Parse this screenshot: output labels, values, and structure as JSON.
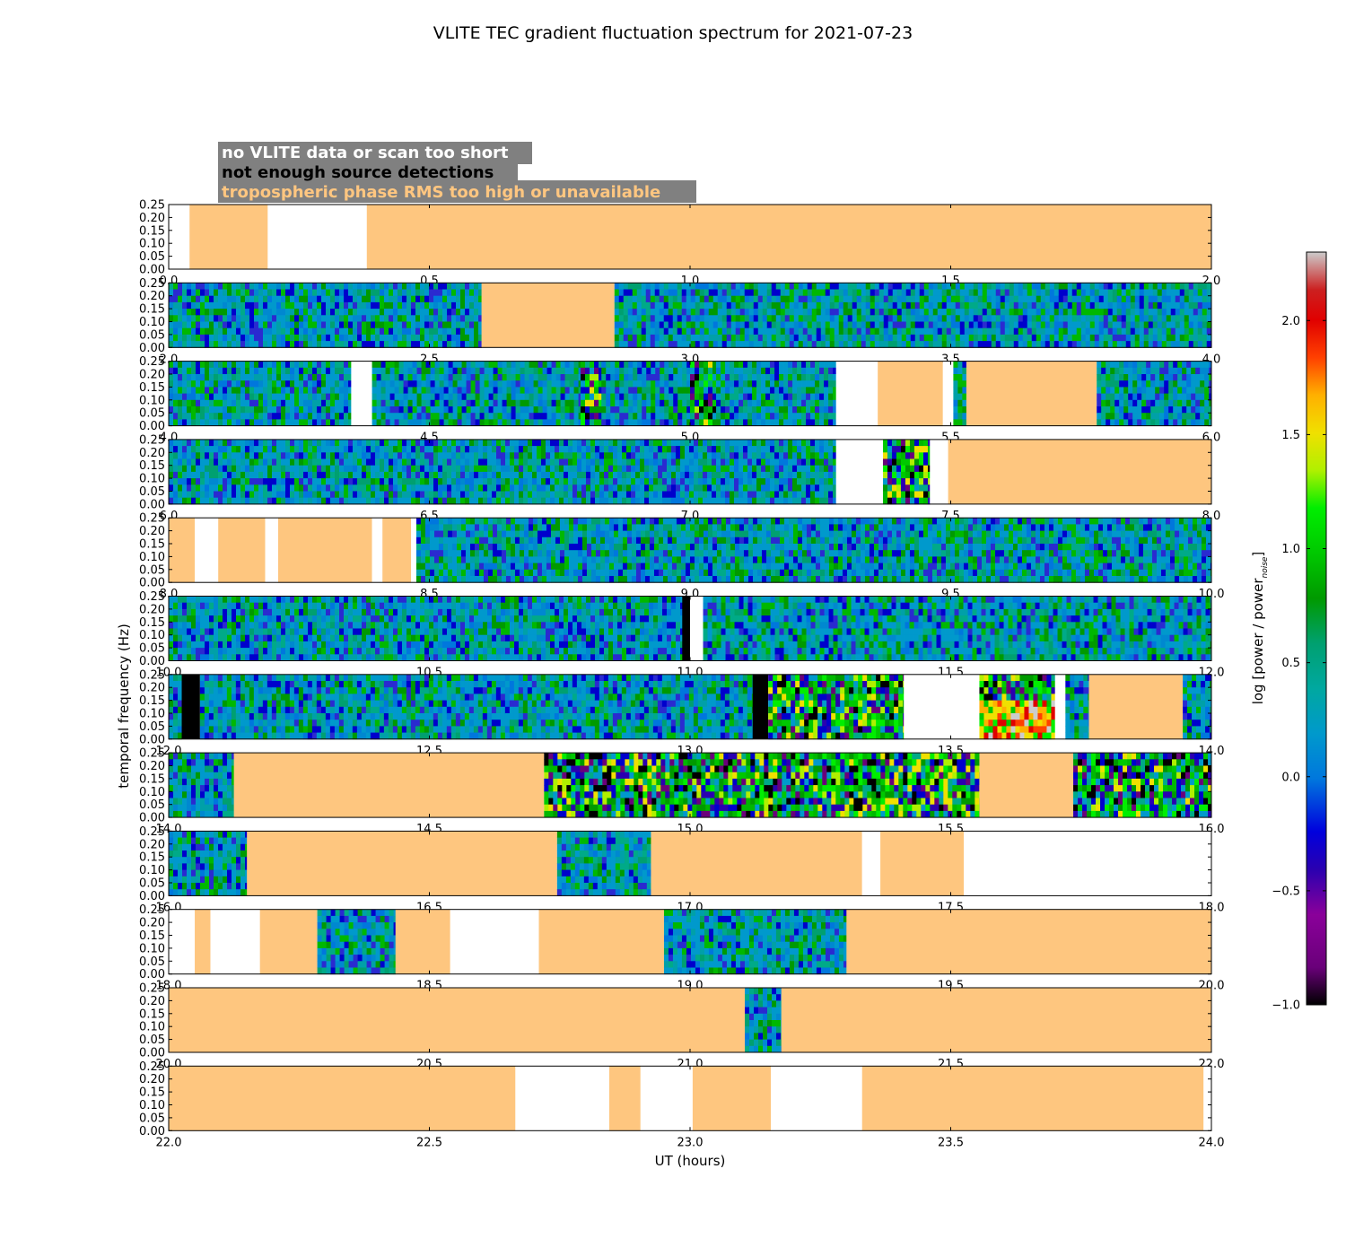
{
  "chart_data": {
    "type": "heatmap",
    "title": "VLITE TEC gradient fluctuation spectrum for 2021-07-23",
    "xlabel": "UT (hours)",
    "ylabel": "temporal frequency (Hz)",
    "y_ticks": [
      "0.00",
      "0.05",
      "0.10",
      "0.15",
      "0.20",
      "0.25"
    ],
    "ylim": [
      0,
      0.25
    ],
    "legend": [
      {
        "label": "no VLITE data or scan too short",
        "text_color": "#ffffff",
        "fill": "white"
      },
      {
        "label": "not enough source detections",
        "text_color": "#000000",
        "fill": "black"
      },
      {
        "label": "tropospheric phase RMS too high or unavailable",
        "text_color": "#ffc680",
        "fill": "orange"
      }
    ],
    "colors": {
      "orange": "#fec67f",
      "white": "#ffffff",
      "black": "#000000",
      "legend_box": "#808080"
    },
    "colorbar": {
      "label": "log [power / power",
      "label_sub": "noise",
      "label_end": "]",
      "range": [
        -1.0,
        2.3
      ],
      "ticks": [
        "−1.0",
        "−0.5",
        "0.0",
        "0.5",
        "1.0",
        "1.5",
        "2.0"
      ],
      "tick_values": [
        -1.0,
        -0.5,
        0.0,
        0.5,
        1.0,
        1.5,
        2.0
      ],
      "colormap": "nipy_spectral"
    },
    "panels": [
      {
        "xlim": [
          0,
          2
        ],
        "xticks": [
          "0.0",
          "0.5",
          "1.0",
          "1.5",
          "2.0"
        ],
        "segments": [
          {
            "s": 0.0,
            "e": 0.04,
            "k": "white"
          },
          {
            "s": 0.04,
            "e": 0.19,
            "k": "orange"
          },
          {
            "s": 0.19,
            "e": 0.38,
            "k": "white"
          },
          {
            "s": 0.38,
            "e": 2.0,
            "k": "orange"
          }
        ]
      },
      {
        "xlim": [
          2,
          4
        ],
        "xticks": [
          "2.0",
          "2.5",
          "3.0",
          "3.5",
          "4.0"
        ],
        "segments": [
          {
            "s": 2.0,
            "e": 2.6,
            "k": "data"
          },
          {
            "s": 2.6,
            "e": 2.855,
            "k": "orange"
          },
          {
            "s": 2.855,
            "e": 4.0,
            "k": "data"
          }
        ]
      },
      {
        "xlim": [
          4,
          6
        ],
        "xticks": [
          "4.0",
          "4.5",
          "5.0",
          "5.5",
          "6.0"
        ],
        "segments": [
          {
            "s": 4.0,
            "e": 4.35,
            "k": "data"
          },
          {
            "s": 4.35,
            "e": 4.39,
            "k": "white"
          },
          {
            "s": 4.39,
            "e": 4.79,
            "k": "data"
          },
          {
            "s": 4.79,
            "e": 4.83,
            "k": "active"
          },
          {
            "s": 4.83,
            "e": 5.0,
            "k": "data"
          },
          {
            "s": 5.0,
            "e": 5.05,
            "k": "active"
          },
          {
            "s": 5.05,
            "e": 5.28,
            "k": "data"
          },
          {
            "s": 5.28,
            "e": 5.36,
            "k": "white"
          },
          {
            "s": 5.36,
            "e": 5.485,
            "k": "orange"
          },
          {
            "s": 5.485,
            "e": 5.505,
            "k": "white"
          },
          {
            "s": 5.505,
            "e": 5.53,
            "k": "data"
          },
          {
            "s": 5.53,
            "e": 5.78,
            "k": "orange"
          },
          {
            "s": 5.78,
            "e": 6.0,
            "k": "data"
          }
        ]
      },
      {
        "xlim": [
          6,
          8
        ],
        "xticks": [
          "6.0",
          "6.5",
          "7.0",
          "7.5",
          "8.0"
        ],
        "segments": [
          {
            "s": 6.0,
            "e": 7.28,
            "k": "data"
          },
          {
            "s": 7.28,
            "e": 7.37,
            "k": "white"
          },
          {
            "s": 7.37,
            "e": 7.46,
            "k": "active"
          },
          {
            "s": 7.46,
            "e": 7.495,
            "k": "white"
          },
          {
            "s": 7.495,
            "e": 8.0,
            "k": "orange"
          }
        ]
      },
      {
        "xlim": [
          8,
          10
        ],
        "xticks": [
          "8.0",
          "8.5",
          "9.0",
          "9.5",
          "10.0"
        ],
        "segments": [
          {
            "s": 8.0,
            "e": 8.05,
            "k": "orange"
          },
          {
            "s": 8.05,
            "e": 8.095,
            "k": "white"
          },
          {
            "s": 8.095,
            "e": 8.185,
            "k": "orange"
          },
          {
            "s": 8.185,
            "e": 8.21,
            "k": "white"
          },
          {
            "s": 8.21,
            "e": 8.39,
            "k": "orange"
          },
          {
            "s": 8.39,
            "e": 8.41,
            "k": "white"
          },
          {
            "s": 8.41,
            "e": 8.465,
            "k": "orange"
          },
          {
            "s": 8.465,
            "e": 8.475,
            "k": "white"
          },
          {
            "s": 8.475,
            "e": 10.0,
            "k": "data"
          }
        ]
      },
      {
        "xlim": [
          10,
          12
        ],
        "xticks": [
          "10.0",
          "10.5",
          "11.0",
          "11.5",
          "12.0"
        ],
        "segments": [
          {
            "s": 10.0,
            "e": 10.985,
            "k": "data"
          },
          {
            "s": 10.985,
            "e": 11.0,
            "k": "black"
          },
          {
            "s": 11.0,
            "e": 11.025,
            "k": "white"
          },
          {
            "s": 11.025,
            "e": 12.0,
            "k": "data"
          }
        ]
      },
      {
        "xlim": [
          12,
          14
        ],
        "xticks": [
          "12.0",
          "12.5",
          "13.0",
          "13.5",
          "14.0"
        ],
        "segments": [
          {
            "s": 12.0,
            "e": 12.025,
            "k": "data"
          },
          {
            "s": 12.025,
            "e": 12.06,
            "k": "black"
          },
          {
            "s": 12.06,
            "e": 13.12,
            "k": "data"
          },
          {
            "s": 13.12,
            "e": 13.15,
            "k": "black"
          },
          {
            "s": 13.15,
            "e": 13.41,
            "k": "active"
          },
          {
            "s": 13.41,
            "e": 13.555,
            "k": "white"
          },
          {
            "s": 13.555,
            "e": 13.7,
            "k": "hot"
          },
          {
            "s": 13.7,
            "e": 13.72,
            "k": "white"
          },
          {
            "s": 13.72,
            "e": 13.765,
            "k": "data"
          },
          {
            "s": 13.765,
            "e": 13.945,
            "k": "orange"
          },
          {
            "s": 13.945,
            "e": 14.0,
            "k": "data"
          }
        ]
      },
      {
        "xlim": [
          14,
          16
        ],
        "xticks": [
          "14.0",
          "14.5",
          "15.0",
          "15.5",
          "16.0"
        ],
        "segments": [
          {
            "s": 14.0,
            "e": 14.125,
            "k": "data"
          },
          {
            "s": 14.125,
            "e": 14.72,
            "k": "orange"
          },
          {
            "s": 14.72,
            "e": 15.555,
            "k": "active"
          },
          {
            "s": 15.555,
            "e": 15.735,
            "k": "orange"
          },
          {
            "s": 15.735,
            "e": 16.0,
            "k": "active"
          }
        ]
      },
      {
        "xlim": [
          16,
          18
        ],
        "xticks": [
          "16.0",
          "16.5",
          "17.0",
          "17.5",
          "18.0"
        ],
        "segments": [
          {
            "s": 16.0,
            "e": 16.15,
            "k": "data"
          },
          {
            "s": 16.15,
            "e": 16.745,
            "k": "orange"
          },
          {
            "s": 16.745,
            "e": 16.925,
            "k": "data"
          },
          {
            "s": 16.925,
            "e": 17.33,
            "k": "orange"
          },
          {
            "s": 17.33,
            "e": 17.365,
            "k": "white"
          },
          {
            "s": 17.365,
            "e": 17.525,
            "k": "orange"
          },
          {
            "s": 17.525,
            "e": 18.0,
            "k": "white"
          }
        ]
      },
      {
        "xlim": [
          18,
          20
        ],
        "xticks": [
          "18.0",
          "18.5",
          "19.0",
          "19.5",
          "20.0"
        ],
        "segments": [
          {
            "s": 18.0,
            "e": 18.05,
            "k": "white"
          },
          {
            "s": 18.05,
            "e": 18.08,
            "k": "orange"
          },
          {
            "s": 18.08,
            "e": 18.175,
            "k": "white"
          },
          {
            "s": 18.175,
            "e": 18.285,
            "k": "orange"
          },
          {
            "s": 18.285,
            "e": 18.435,
            "k": "data"
          },
          {
            "s": 18.435,
            "e": 18.54,
            "k": "orange"
          },
          {
            "s": 18.54,
            "e": 18.71,
            "k": "white"
          },
          {
            "s": 18.71,
            "e": 18.95,
            "k": "orange"
          },
          {
            "s": 18.95,
            "e": 19.3,
            "k": "data"
          },
          {
            "s": 19.3,
            "e": 20.0,
            "k": "orange"
          }
        ]
      },
      {
        "xlim": [
          20,
          22
        ],
        "xticks": [
          "20.0",
          "20.5",
          "21.0",
          "21.5",
          "22.0"
        ],
        "segments": [
          {
            "s": 20.0,
            "e": 21.105,
            "k": "orange"
          },
          {
            "s": 21.105,
            "e": 21.175,
            "k": "data"
          },
          {
            "s": 21.175,
            "e": 22.0,
            "k": "orange"
          }
        ]
      },
      {
        "xlim": [
          22,
          24
        ],
        "xticks": [
          "22.0",
          "22.5",
          "23.0",
          "23.5",
          "24.0"
        ],
        "segments": [
          {
            "s": 22.0,
            "e": 22.665,
            "k": "orange"
          },
          {
            "s": 22.665,
            "e": 22.845,
            "k": "white"
          },
          {
            "s": 22.845,
            "e": 22.905,
            "k": "orange"
          },
          {
            "s": 22.905,
            "e": 23.005,
            "k": "white"
          },
          {
            "s": 23.005,
            "e": 23.155,
            "k": "orange"
          },
          {
            "s": 23.155,
            "e": 23.33,
            "k": "white"
          },
          {
            "s": 23.33,
            "e": 23.985,
            "k": "orange"
          },
          {
            "s": 23.985,
            "e": 24.0,
            "k": "white"
          }
        ]
      }
    ]
  }
}
